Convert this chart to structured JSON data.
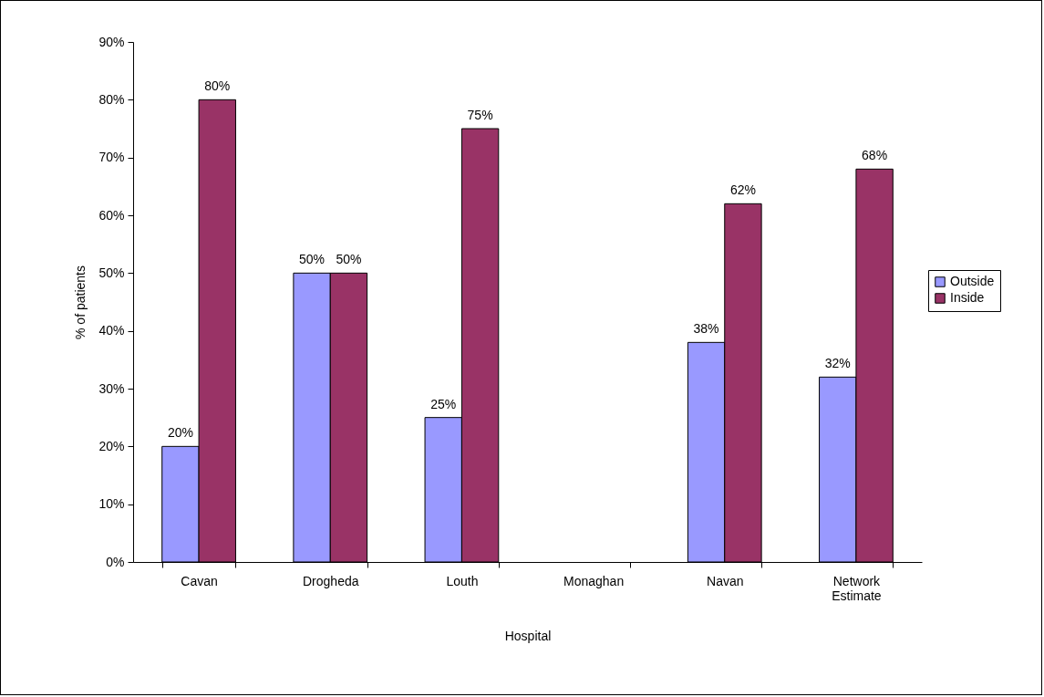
{
  "chart_data": {
    "type": "bar",
    "xlabel": "Hospital",
    "ylabel": "% of patients",
    "categories": [
      "Cavan",
      "Drogheda",
      "Louth",
      "Monaghan",
      "Navan",
      "Network Estimate"
    ],
    "series": [
      {
        "name": "Outside",
        "color": "#9999ff",
        "values": [
          20,
          50,
          25,
          null,
          38,
          32
        ],
        "value_labels": [
          "20%",
          "50%",
          "25%",
          null,
          "38%",
          "32%"
        ]
      },
      {
        "name": "Inside",
        "color": "#993366",
        "values": [
          80,
          50,
          75,
          null,
          62,
          68
        ],
        "value_labels": [
          "80%",
          "50%",
          "75%",
          null,
          "62%",
          "68%"
        ]
      }
    ],
    "ylim": [
      0,
      90
    ],
    "yticks": [
      {
        "value": 0,
        "label": "0%"
      },
      {
        "value": 10,
        "label": "10%"
      },
      {
        "value": 20,
        "label": "20%"
      },
      {
        "value": 30,
        "label": "30%"
      },
      {
        "value": 40,
        "label": "40%"
      },
      {
        "value": 50,
        "label": "50%"
      },
      {
        "value": 60,
        "label": "60%"
      },
      {
        "value": 70,
        "label": "70%"
      },
      {
        "value": 80,
        "label": "80%"
      },
      {
        "value": 90,
        "label": "90%"
      }
    ],
    "grid": false,
    "legend": "right"
  }
}
